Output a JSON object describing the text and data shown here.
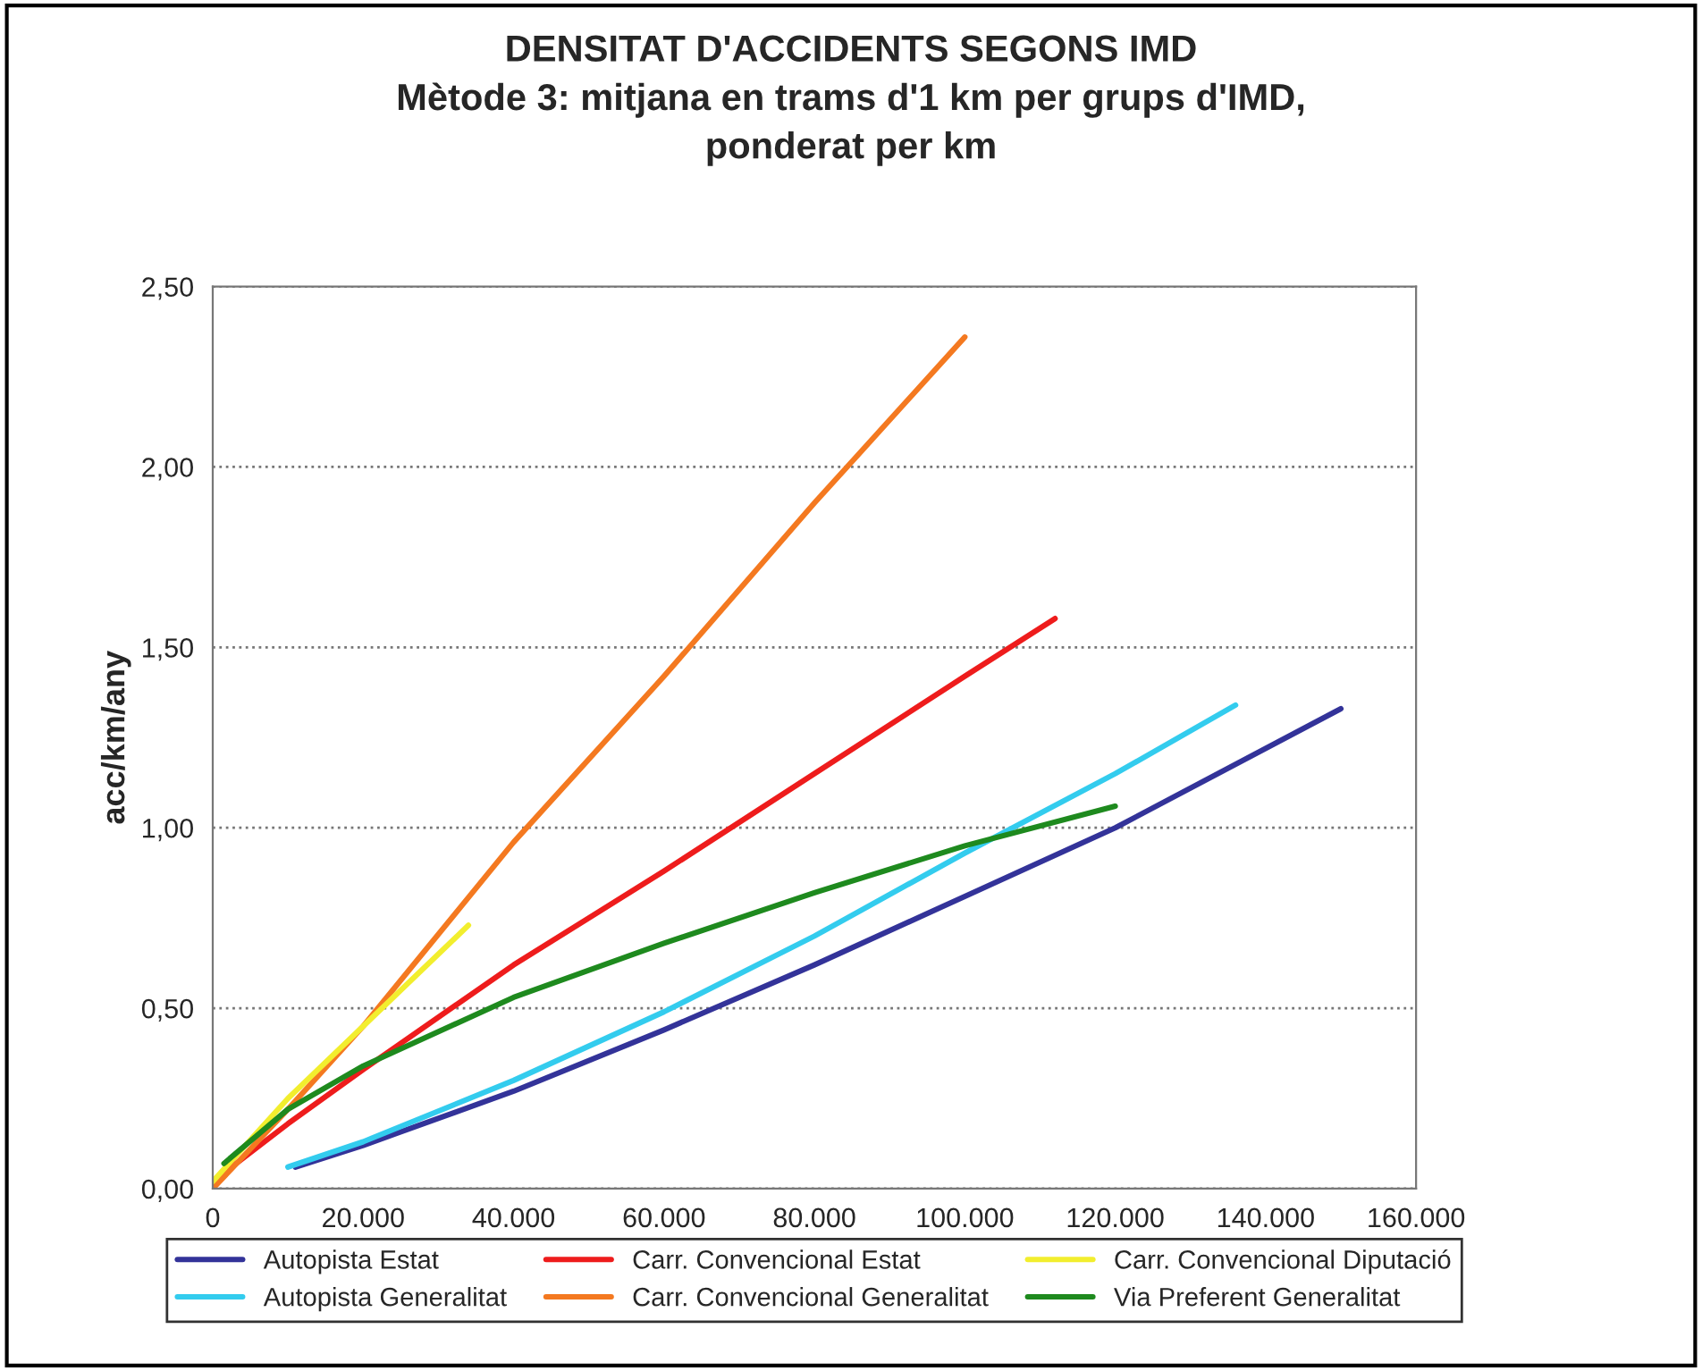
{
  "chart_data": {
    "type": "line",
    "title": "DENSITAT D'ACCIDENTS SEGONS IMD\nMètode 3: mitjana en trams d'1 km per grups d'IMD,\nponderat per km",
    "ylabel": "acc/km/any",
    "xlim": [
      0,
      160000
    ],
    "ylim": [
      0,
      2.5
    ],
    "xticks": [
      0,
      {
        "value": 20000,
        "label": "20.000"
      },
      {
        "value": 40000,
        "label": "40.000"
      },
      {
        "value": 60000,
        "label": "60.000"
      },
      {
        "value": 80000,
        "label": "80.000"
      },
      {
        "value": 100000,
        "label": "100.000"
      },
      {
        "value": 120000,
        "label": "120.000"
      },
      {
        "value": 140000,
        "label": "140.000"
      },
      {
        "value": 160000,
        "label": "160.000"
      }
    ],
    "yticks": [
      {
        "value": 0,
        "label": "0,00"
      },
      {
        "value": 0.5,
        "label": "0,50"
      },
      {
        "value": 1.0,
        "label": "1,00"
      },
      {
        "value": 1.5,
        "label": "1,50"
      },
      {
        "value": 2.0,
        "label": "2,00"
      },
      {
        "value": 2.5,
        "label": "2,50"
      }
    ],
    "grid": "y",
    "legend": "bottom",
    "line_style": "solid",
    "marker": "none",
    "series": [
      {
        "name": "Autopista Estat",
        "color": "#333399",
        "x": [
          11000,
          20000,
          40000,
          60000,
          80000,
          100000,
          120000,
          150000
        ],
        "values": [
          0.06,
          0.12,
          0.27,
          0.44,
          0.62,
          0.81,
          1.0,
          1.33
        ]
      },
      {
        "name": "Autopista Generalitat",
        "color": "#33ccee",
        "x": [
          10000,
          20000,
          40000,
          60000,
          80000,
          100000,
          120000,
          136000
        ],
        "values": [
          0.06,
          0.13,
          0.3,
          0.49,
          0.7,
          0.93,
          1.15,
          1.34
        ]
      },
      {
        "name": "Carr. Convencional Estat",
        "color": "#ee1c1c",
        "x": [
          0,
          10000,
          20000,
          40000,
          60000,
          80000,
          100000,
          112000
        ],
        "values": [
          0.02,
          0.18,
          0.33,
          0.62,
          0.88,
          1.15,
          1.42,
          1.58
        ]
      },
      {
        "name": "Carr. Convencional Generalitat",
        "color": "#f47920",
        "x": [
          0,
          10000,
          20000,
          40000,
          60000,
          80000,
          100000
        ],
        "values": [
          0.0,
          0.22,
          0.45,
          0.96,
          1.42,
          1.9,
          2.36
        ]
      },
      {
        "name": "Carr. Convencional Diputació",
        "color": "#f2ee2e",
        "x": [
          0,
          10000,
          20000,
          34000
        ],
        "values": [
          0.02,
          0.25,
          0.45,
          0.73
        ]
      },
      {
        "name": "Via Preferent Generalitat",
        "color": "#1e8a1e",
        "x": [
          1500,
          10000,
          20000,
          40000,
          60000,
          80000,
          100000,
          120000
        ],
        "values": [
          0.07,
          0.22,
          0.34,
          0.53,
          0.68,
          0.82,
          0.95,
          1.06
        ]
      }
    ]
  }
}
